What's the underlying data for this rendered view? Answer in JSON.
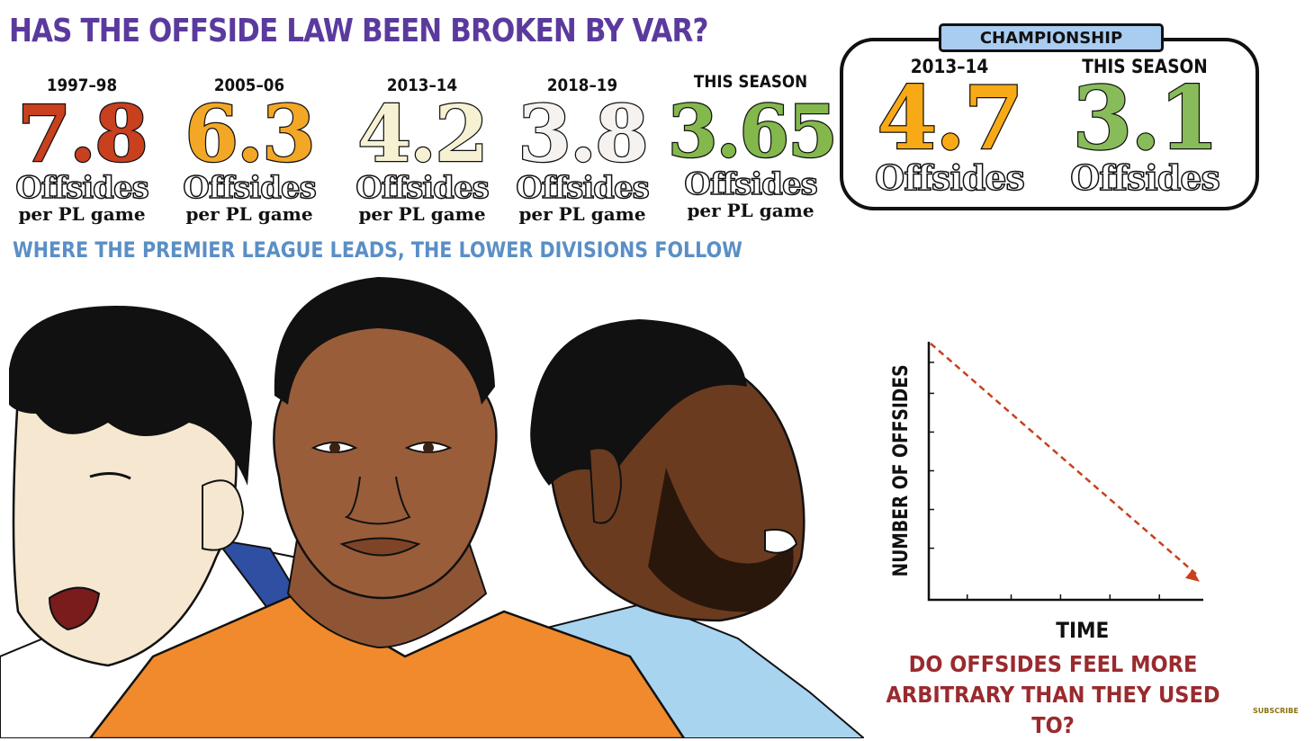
{
  "title": "HAS THE OFFSIDE LAW BEEN BROKEN BY VAR?",
  "subtitle": "WHERE THE PREMIER LEAGUE LEADS, THE LOWER DIVISIONS FOLLOW",
  "premier_league": [
    {
      "season": "1997–98",
      "value": "7.8",
      "unit": "Offsides",
      "per": "per PL game",
      "color": "#c8401e"
    },
    {
      "season": "2005–06",
      "value": "6.3",
      "unit": "Offsides",
      "per": "per PL game",
      "color": "#f3a726"
    },
    {
      "season": "2013–14",
      "value": "4.2",
      "unit": "Offsides",
      "per": "per PL game",
      "color": "#f6f1d2"
    },
    {
      "season": "2018–19",
      "value": "3.8",
      "unit": "Offsides",
      "per": "per PL game",
      "color": "#f5f2f0"
    },
    {
      "season": "THIS SEASON",
      "value": "3.65",
      "unit": "Offsides",
      "per": "per PL game",
      "color": "#84b84c"
    }
  ],
  "championship": {
    "label": "CHAMPIONSHIP",
    "stats": [
      {
        "season": "2013–14",
        "value": "4.7",
        "unit": "Offsides",
        "color": "#f8aa16"
      },
      {
        "season": "THIS SEASON",
        "value": "3.1",
        "unit": "Offsides",
        "color": "#88bc5a"
      }
    ]
  },
  "diagram": {
    "ylabel": "NUMBER OF OFFSIDES",
    "xlabel": "TIME",
    "trend": "decreasing",
    "trend_color": "#c8401e"
  },
  "question": {
    "line1": "DO OFFSIDES FEEL MORE",
    "line2": "ARBITRARY THAN THEY USED TO?"
  },
  "subscribe": "SUBSCRIBE",
  "illustration": {
    "players": [
      {
        "name": "player-left",
        "shirt_color": "#ffffff",
        "trim_color": "#2f4fa3"
      },
      {
        "name": "player-center",
        "shirt_color": "#f08a2c"
      },
      {
        "name": "player-right",
        "shirt_color": "#a8d4f0"
      }
    ]
  }
}
